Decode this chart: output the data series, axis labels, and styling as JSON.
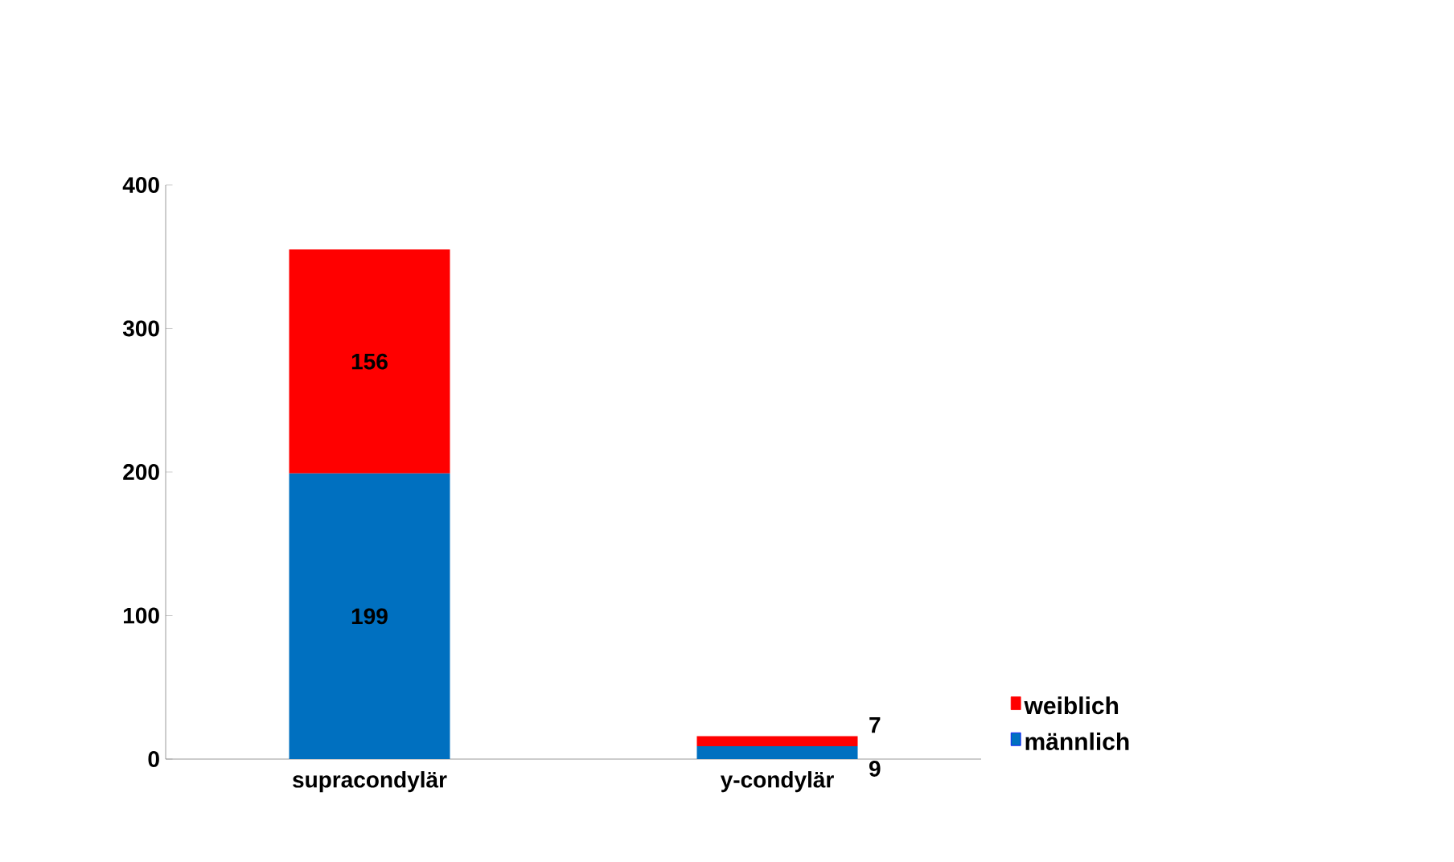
{
  "chart_data": {
    "type": "bar",
    "stacked": true,
    "categories": [
      "supracondylär",
      "y-condylär"
    ],
    "series": [
      {
        "name": "männlich",
        "color": "#0070c0",
        "values": [
          199,
          9
        ]
      },
      {
        "name": "weiblich",
        "color": "#ff0000",
        "values": [
          156,
          7
        ]
      }
    ],
    "ylim": [
      0,
      400
    ],
    "yticks": [
      0,
      100,
      200,
      300,
      400
    ],
    "data_labels": true,
    "legend": "right",
    "grid": false
  }
}
